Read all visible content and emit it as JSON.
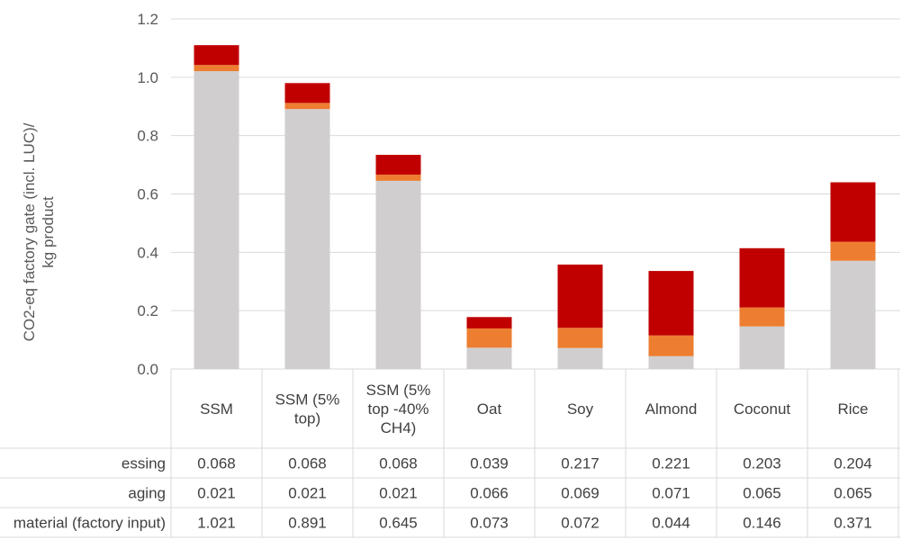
{
  "chart_data": {
    "type": "bar",
    "stacked": true,
    "title": "",
    "ylabel": "CO2-eq factory gate (incl. LUC)/ kg product",
    "ylabel_lines": [
      "CO2-eq factory gate (incl. LUC)/",
      "kg product"
    ],
    "ylim": [
      0,
      1.2
    ],
    "yticks": [
      "0.0",
      "0.2",
      "0.4",
      "0.6",
      "0.8",
      "1.0",
      "1.2"
    ],
    "grid": true,
    "categories": [
      "SSM",
      "SSM (5% top)",
      "SSM (5% top -40% CH4)",
      "Oat",
      "Soy",
      "Almond",
      "Coconut",
      "Rice"
    ],
    "category_lines": [
      [
        "SSM"
      ],
      [
        "SSM (5%",
        "top)"
      ],
      [
        "SSM (5%",
        "top -40%",
        "CH4)"
      ],
      [
        "Oat"
      ],
      [
        "Soy"
      ],
      [
        "Almond"
      ],
      [
        "Coconut"
      ],
      [
        "Rice"
      ]
    ],
    "series": [
      {
        "name": "material (factory input)",
        "row_label": "material (factory input)",
        "color": "#d0cece",
        "values": [
          1.021,
          0.891,
          0.645,
          0.073,
          0.072,
          0.044,
          0.146,
          0.371
        ],
        "labels": [
          "1.021",
          "0.891",
          "0.645",
          "0.073",
          "0.072",
          "0.044",
          "0.146",
          "0.371"
        ]
      },
      {
        "name": "packaging",
        "row_label": "aging",
        "color": "#ed7d31",
        "values": [
          0.021,
          0.021,
          0.021,
          0.066,
          0.069,
          0.071,
          0.065,
          0.065
        ],
        "labels": [
          "0.021",
          "0.021",
          "0.021",
          "0.066",
          "0.069",
          "0.071",
          "0.065",
          "0.065"
        ]
      },
      {
        "name": "processing",
        "row_label": "essing",
        "color": "#c00000",
        "values": [
          0.068,
          0.068,
          0.068,
          0.039,
          0.217,
          0.221,
          0.203,
          0.204
        ],
        "labels": [
          "0.068",
          "0.068",
          "0.068",
          "0.039",
          "0.217",
          "0.221",
          "0.203",
          "0.204"
        ]
      }
    ],
    "table_row_order": [
      "processing",
      "packaging",
      "material (factory input)"
    ]
  }
}
